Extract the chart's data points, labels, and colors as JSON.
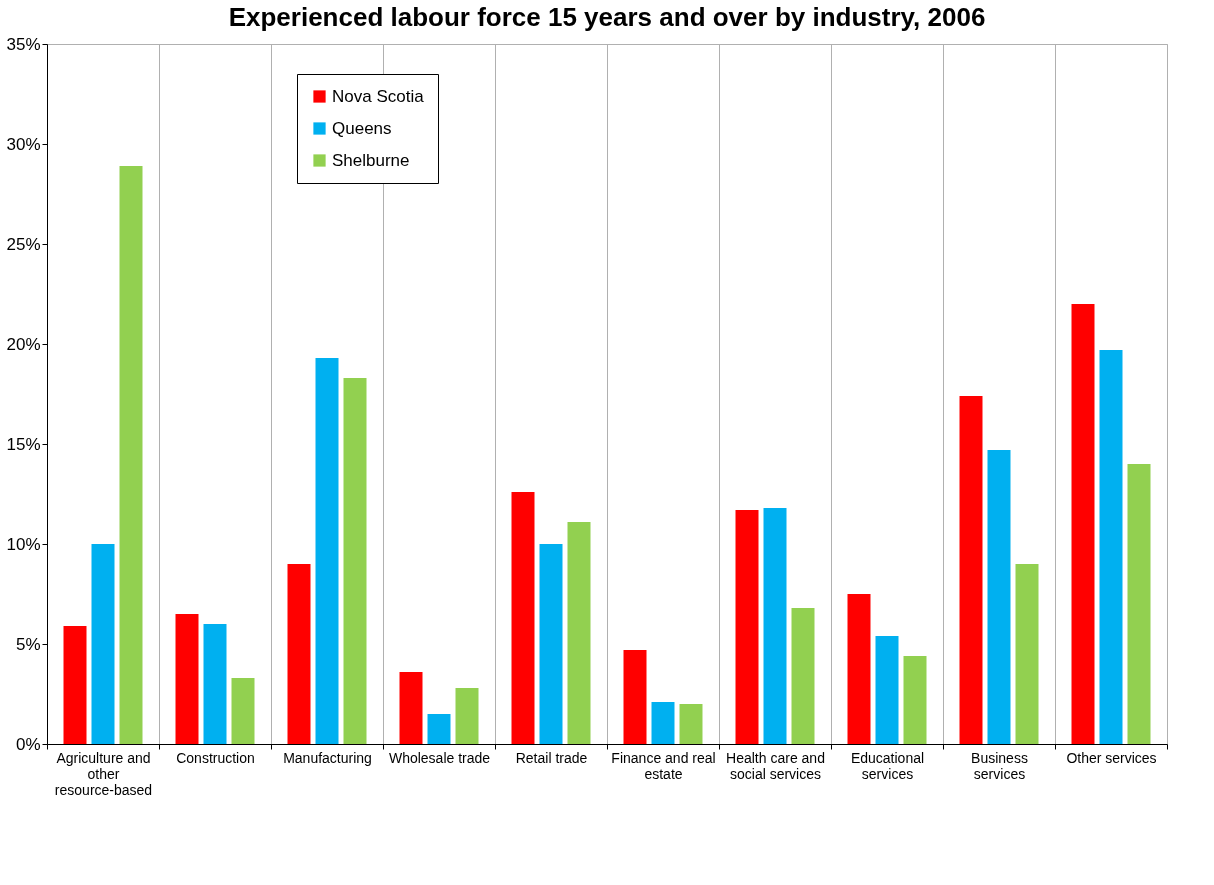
{
  "chart_data": {
    "type": "bar",
    "title": "Experienced labour force 15 years and over by industry, 2006",
    "categories": [
      "Agriculture and other resource-based",
      "Construction",
      "Manufacturing",
      "Wholesale trade",
      "Retail trade",
      "Finance and real estate",
      "Health care and social services",
      "Educational services",
      "Business services",
      "Other services"
    ],
    "series": [
      {
        "name": "Nova Scotia",
        "color": "#ff0000",
        "values": [
          5.9,
          6.5,
          9.0,
          3.6,
          12.6,
          4.7,
          11.7,
          7.5,
          17.4,
          22.0
        ]
      },
      {
        "name": "Queens",
        "color": "#00b0f0",
        "values": [
          10.0,
          6.0,
          19.3,
          1.5,
          10.0,
          2.1,
          11.8,
          5.4,
          14.7,
          19.7
        ]
      },
      {
        "name": "Shelburne",
        "color": "#92d050",
        "values": [
          28.9,
          3.3,
          18.3,
          2.8,
          11.1,
          2.0,
          6.8,
          4.4,
          9.0,
          14.0
        ]
      }
    ],
    "ylim": [
      0,
      35
    ],
    "yticks": [
      {
        "value": 0,
        "label": "0%"
      },
      {
        "value": 5,
        "label": "5%"
      },
      {
        "value": 10,
        "label": "10%"
      },
      {
        "value": 15,
        "label": "15%"
      },
      {
        "value": 20,
        "label": "20%"
      },
      {
        "value": 25,
        "label": "25%"
      },
      {
        "value": 30,
        "label": "30%"
      },
      {
        "value": 35,
        "label": "35%"
      }
    ],
    "grid": "x",
    "legend": "top left"
  }
}
